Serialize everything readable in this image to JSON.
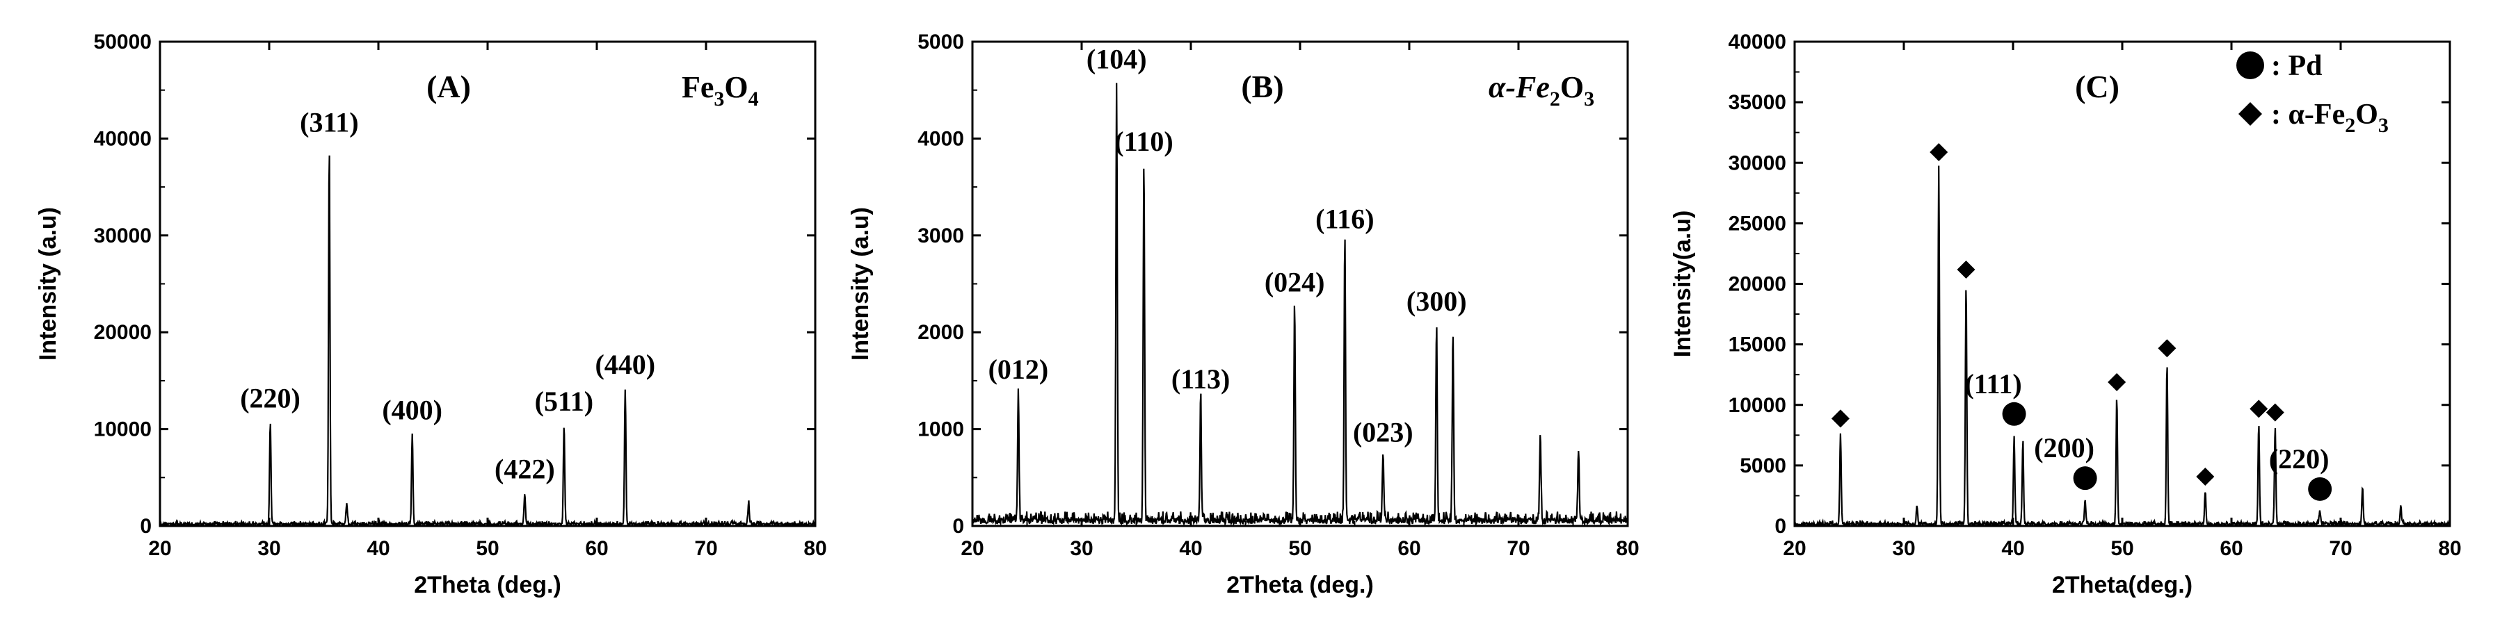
{
  "chart_data": [
    {
      "type": "line",
      "panel_label": "(A)",
      "compound": {
        "main": "Fe",
        "sub1": "3",
        "mid": "O",
        "sub2": "4"
      },
      "xlabel": "2Theta (deg.)",
      "ylabel": "Intensity (a.u)",
      "xlim": [
        20,
        80
      ],
      "ylim": [
        0,
        50000
      ],
      "xticks": [
        20,
        30,
        40,
        50,
        60,
        70,
        80
      ],
      "yticks": [
        0,
        10000,
        20000,
        30000,
        40000,
        50000
      ],
      "noise_level": 500,
      "peaks": [
        {
          "x": 30.1,
          "y": 10500,
          "label": "(220)"
        },
        {
          "x": 35.5,
          "y": 39000,
          "label": "(311)"
        },
        {
          "x": 37.1,
          "y": 2200,
          "label": ""
        },
        {
          "x": 43.1,
          "y": 9300,
          "label": "(400)"
        },
        {
          "x": 53.4,
          "y": 3200,
          "label": "(422)"
        },
        {
          "x": 57.0,
          "y": 10200,
          "label": "(511)"
        },
        {
          "x": 62.6,
          "y": 14000,
          "label": "(440)"
        },
        {
          "x": 73.9,
          "y": 2200,
          "label": ""
        }
      ]
    },
    {
      "type": "line",
      "panel_label": "(B)",
      "compound": {
        "main": "α-Fe",
        "sub1": "2",
        "mid": "O",
        "sub2": "3"
      },
      "xlabel": "2Theta (deg.)",
      "ylabel": "Intensity (a.u)",
      "xlim": [
        20,
        80
      ],
      "ylim": [
        0,
        5000
      ],
      "xticks": [
        20,
        30,
        40,
        50,
        60,
        70,
        80
      ],
      "yticks": [
        0,
        1000,
        2000,
        3000,
        4000,
        5000
      ],
      "noise_level": 150,
      "peaks": [
        {
          "x": 24.2,
          "y": 1350,
          "label": "(012)"
        },
        {
          "x": 33.2,
          "y": 4550,
          "label": "(104)"
        },
        {
          "x": 35.7,
          "y": 3700,
          "label": "(110)"
        },
        {
          "x": 40.9,
          "y": 1250,
          "label": "(113)"
        },
        {
          "x": 49.5,
          "y": 2250,
          "label": "(024)"
        },
        {
          "x": 54.1,
          "y": 2900,
          "label": "(116)"
        },
        {
          "x": 57.6,
          "y": 700,
          "label": "(023)"
        },
        {
          "x": 62.5,
          "y": 2050,
          "label": "(300)"
        },
        {
          "x": 64.0,
          "y": 1950,
          "label": ""
        },
        {
          "x": 72.0,
          "y": 900,
          "label": ""
        },
        {
          "x": 75.5,
          "y": 750,
          "label": ""
        }
      ]
    },
    {
      "type": "line",
      "panel_label": "(C)",
      "xlabel": "2Theta(deg.)",
      "ylabel": "Intensity(a.u)",
      "xlim": [
        20,
        80
      ],
      "ylim": [
        0,
        40000
      ],
      "xticks": [
        20,
        30,
        40,
        50,
        60,
        70,
        80
      ],
      "yticks": [
        0,
        5000,
        10000,
        15000,
        20000,
        25000,
        30000,
        35000,
        40000
      ],
      "noise_level": 400,
      "legend": [
        {
          "marker": "circle",
          "label": ": Pd"
        },
        {
          "marker": "diamond",
          "label": ": α-Fe",
          "sub1": "2",
          "mid": "O",
          "sub2": "3"
        }
      ],
      "peaks": [
        {
          "x": 24.2,
          "y": 7500,
          "marker": "diamond",
          "label": ""
        },
        {
          "x": 31.2,
          "y": 1500,
          "marker": "",
          "label": ""
        },
        {
          "x": 33.2,
          "y": 29500,
          "marker": "diamond",
          "label": ""
        },
        {
          "x": 35.7,
          "y": 19800,
          "marker": "diamond",
          "label": ""
        },
        {
          "x": 40.1,
          "y": 7300,
          "marker": "circle",
          "label": "(111)"
        },
        {
          "x": 40.9,
          "y": 6800,
          "marker": "",
          "label": ""
        },
        {
          "x": 46.6,
          "y": 2000,
          "marker": "circle",
          "label": "(200)"
        },
        {
          "x": 49.5,
          "y": 10500,
          "marker": "diamond",
          "label": ""
        },
        {
          "x": 54.1,
          "y": 13300,
          "marker": "diamond",
          "label": ""
        },
        {
          "x": 57.6,
          "y": 2700,
          "marker": "diamond",
          "label": ""
        },
        {
          "x": 62.5,
          "y": 8300,
          "marker": "diamond",
          "label": ""
        },
        {
          "x": 64.0,
          "y": 8000,
          "marker": "diamond",
          "label": ""
        },
        {
          "x": 68.1,
          "y": 1100,
          "marker": "circle",
          "label": "(220)"
        },
        {
          "x": 72.0,
          "y": 3000,
          "marker": "",
          "label": ""
        },
        {
          "x": 75.5,
          "y": 1500,
          "marker": "",
          "label": ""
        }
      ]
    }
  ]
}
